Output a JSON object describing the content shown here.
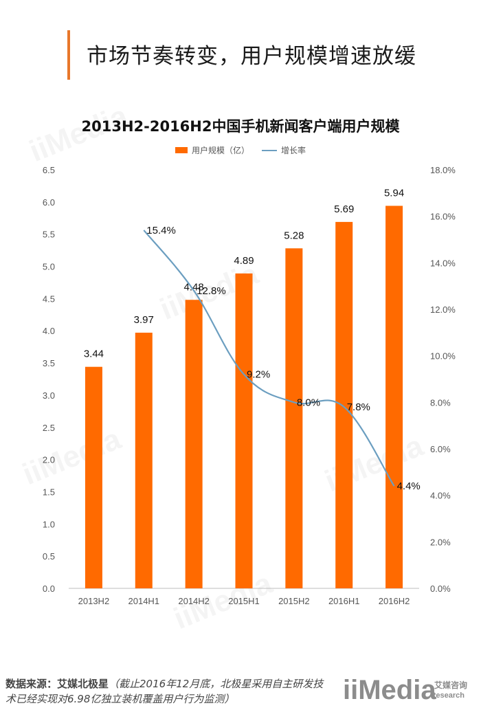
{
  "header": {
    "title": "市场节奏转变，用户规模增速放缓",
    "accent_color": "#e8772a"
  },
  "chart_data": {
    "type": "bar",
    "title": "2013H2-2016H2中国手机新闻客户端用户规模",
    "categories": [
      "2013H2",
      "2014H1",
      "2014H2",
      "2015H1",
      "2015H2",
      "2016H1",
      "2016H2"
    ],
    "series": [
      {
        "name": "用户规模（亿）",
        "type": "bar",
        "axis": "left",
        "color": "#ff6a00",
        "values": [
          3.44,
          3.97,
          4.48,
          4.89,
          5.28,
          5.69,
          5.94
        ],
        "labels": [
          "3.44",
          "3.97",
          "4.48",
          "4.89",
          "5.28",
          "5.69",
          "5.94"
        ]
      },
      {
        "name": "增长率",
        "type": "line",
        "axis": "right",
        "color": "#6b9ec0",
        "values": [
          null,
          15.4,
          12.8,
          9.2,
          8.0,
          7.8,
          4.4
        ],
        "labels": [
          "",
          "15.4%",
          "12.8%",
          "9.2%",
          "8.0%",
          "7.8%",
          "4.4%"
        ]
      }
    ],
    "y_left": {
      "ylim": [
        0,
        6.5
      ],
      "ticks": [
        "0.0",
        "0.5",
        "1.0",
        "1.5",
        "2.0",
        "2.5",
        "3.0",
        "3.5",
        "4.0",
        "4.5",
        "5.0",
        "5.5",
        "6.0",
        "6.5"
      ]
    },
    "y_right": {
      "ylim": [
        0,
        18
      ],
      "ticks": [
        "0.0%",
        "2.0%",
        "4.0%",
        "6.0%",
        "8.0%",
        "10.0%",
        "12.0%",
        "14.0%",
        "16.0%",
        "18.0%"
      ]
    },
    "grid": false,
    "legend_position": "top-center"
  },
  "footer": {
    "source_label": "数据来源：艾媒北极星",
    "source_note": "（截止2016年12月底，北极星采用自主研发技术已经实现对6.98亿独立装机覆盖用户行为监测）"
  },
  "logo": {
    "mark": "iiMedia",
    "cn": "艾媒咨询",
    "en": "Research"
  }
}
